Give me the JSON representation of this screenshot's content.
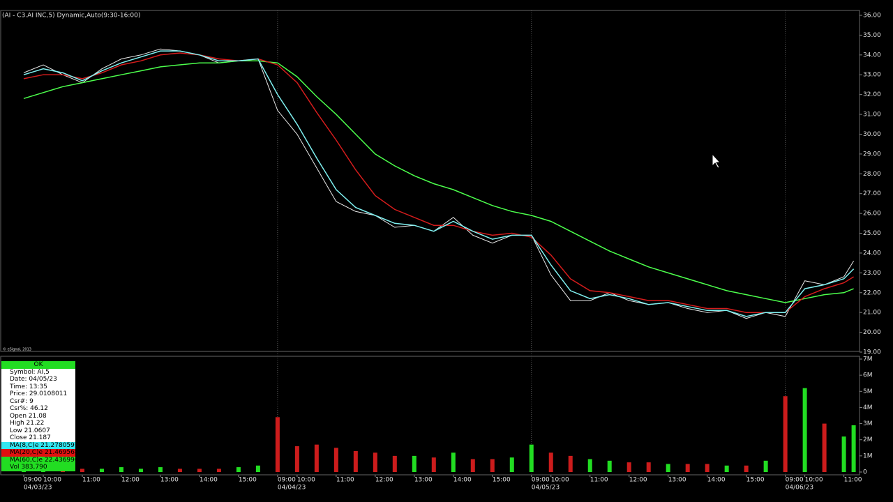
{
  "chart_data": {
    "type": "line",
    "title": "(AI - C3.AI INC,5) Dynamic,Auto(9:30-16:00)",
    "copyright": "© eSignal, 2013",
    "x": [
      0,
      0.5,
      1,
      1.5,
      2,
      2.5,
      3,
      3.5,
      4,
      4.5,
      5,
      5.5,
      6,
      6.5,
      7,
      7.5,
      8,
      8.5,
      9,
      9.5,
      10,
      10.5,
      11,
      11.5,
      12,
      12.5,
      13,
      13.5,
      14,
      14.5,
      15,
      15.5,
      16,
      16.5,
      17,
      17.5,
      18,
      18.5,
      19,
      19.5,
      20,
      20.5,
      21,
      21.25
    ],
    "xlim": [
      0,
      21.4
    ],
    "xticks": [
      {
        "value": 0,
        "label": "09:00"
      },
      {
        "value": 0.5,
        "label": "10:00"
      },
      {
        "value": 1.5,
        "label": "11:00"
      },
      {
        "value": 2.5,
        "label": "12:00"
      },
      {
        "value": 3.5,
        "label": "13:00"
      },
      {
        "value": 4.5,
        "label": "14:00"
      },
      {
        "value": 5.5,
        "label": "15:00"
      },
      {
        "value": 6.5,
        "label": "09:00"
      },
      {
        "value": 7,
        "label": "10:00"
      },
      {
        "value": 8,
        "label": "11:00"
      },
      {
        "value": 9,
        "label": "12:00"
      },
      {
        "value": 10,
        "label": "13:00"
      },
      {
        "value": 11,
        "label": "14:00"
      },
      {
        "value": 12,
        "label": "15:00"
      },
      {
        "value": 13,
        "label": "09:00"
      },
      {
        "value": 13.5,
        "label": "10:00"
      },
      {
        "value": 14.5,
        "label": "11:00"
      },
      {
        "value": 15.5,
        "label": "12:00"
      },
      {
        "value": 16.5,
        "label": "13:00"
      },
      {
        "value": 17.5,
        "label": "14:00"
      },
      {
        "value": 18.5,
        "label": "15:00"
      },
      {
        "value": 19.5,
        "label": "09:00"
      },
      {
        "value": 20,
        "label": "10:00"
      },
      {
        "value": 21,
        "label": "11:00"
      }
    ],
    "dates": [
      {
        "value": 0,
        "label": "04/03/23"
      },
      {
        "value": 6.5,
        "label": "04/04/23"
      },
      {
        "value": 13,
        "label": "04/05/23"
      },
      {
        "value": 19.5,
        "label": "04/06/23"
      }
    ],
    "ylim": [
      19,
      36
    ],
    "yticks": [
      {
        "value": 19,
        "label": "19.00"
      },
      {
        "value": 20,
        "label": "20.00"
      },
      {
        "value": 21,
        "label": "21.00"
      },
      {
        "value": 22,
        "label": "22.00"
      },
      {
        "value": 23,
        "label": "23.00"
      },
      {
        "value": 24,
        "label": "24.00"
      },
      {
        "value": 25,
        "label": "25.00"
      },
      {
        "value": 26,
        "label": "26.00"
      },
      {
        "value": 27,
        "label": "27.00"
      },
      {
        "value": 28,
        "label": "28.00"
      },
      {
        "value": 29,
        "label": "29.00"
      },
      {
        "value": 30,
        "label": "30.00"
      },
      {
        "value": 31,
        "label": "31.00"
      },
      {
        "value": 32,
        "label": "32.00"
      },
      {
        "value": 33,
        "label": "33.00"
      },
      {
        "value": 34,
        "label": "34.00"
      },
      {
        "value": 35,
        "label": "35.00"
      },
      {
        "value": 36,
        "label": "36.00"
      }
    ],
    "series": [
      {
        "color": "#e8e8e8",
        "values": [
          33.1,
          33.5,
          33.0,
          32.6,
          33.3,
          33.8,
          34.0,
          34.3,
          34.2,
          34.0,
          33.6,
          33.7,
          33.8,
          31.2,
          30.0,
          28.3,
          26.6,
          26.1,
          25.9,
          25.3,
          25.4,
          25.1,
          25.8,
          24.9,
          24.5,
          24.9,
          24.9,
          22.9,
          21.6,
          21.6,
          22.0,
          21.6,
          21.4,
          21.5,
          21.2,
          21.0,
          21.1,
          20.7,
          21.0,
          20.8,
          22.6,
          22.4,
          22.8,
          23.6
        ]
      },
      {
        "name": "MA(60,C)e",
        "color": "#4cff4c",
        "values": [
          31.8,
          32.1,
          32.4,
          32.6,
          32.8,
          33.0,
          33.2,
          33.4,
          33.5,
          33.6,
          33.6,
          33.7,
          33.7,
          33.6,
          32.9,
          31.9,
          31.0,
          30.0,
          29.0,
          28.4,
          27.9,
          27.5,
          27.2,
          26.8,
          26.4,
          26.1,
          25.9,
          25.6,
          25.1,
          24.6,
          24.1,
          23.7,
          23.3,
          23.0,
          22.7,
          22.4,
          22.1,
          21.9,
          21.7,
          21.5,
          21.7,
          21.9,
          22.0,
          22.2
        ]
      },
      {
        "name": "MA(20,C)e",
        "color": "#d41c1c",
        "values": [
          32.8,
          33.0,
          33.0,
          32.8,
          33.1,
          33.5,
          33.7,
          34.0,
          34.1,
          34.0,
          33.8,
          33.7,
          33.8,
          33.5,
          32.6,
          31.1,
          29.7,
          28.2,
          26.9,
          26.2,
          25.8,
          25.4,
          25.4,
          25.1,
          24.9,
          25.0,
          24.8,
          23.9,
          22.7,
          22.1,
          22.0,
          21.8,
          21.6,
          21.6,
          21.4,
          21.2,
          21.2,
          21.0,
          21.0,
          21.0,
          21.8,
          22.2,
          22.5,
          22.8
        ]
      },
      {
        "name": "MA(8,C)e",
        "color": "#7ff0f0",
        "values": [
          33.0,
          33.3,
          33.1,
          32.7,
          33.2,
          33.6,
          33.9,
          34.2,
          34.2,
          34.0,
          33.7,
          33.7,
          33.8,
          32.0,
          30.5,
          28.8,
          27.2,
          26.3,
          25.9,
          25.5,
          25.4,
          25.1,
          25.6,
          25.1,
          24.7,
          24.9,
          24.9,
          23.4,
          22.1,
          21.7,
          21.9,
          21.7,
          21.4,
          21.5,
          21.3,
          21.1,
          21.1,
          20.8,
          21.0,
          21.0,
          22.2,
          22.4,
          22.7,
          23.2
        ]
      }
    ],
    "session_breaks": [
      6.5,
      13,
      19.5
    ],
    "volume": {
      "up_color": "#22dd22",
      "down_color": "#cc1c1c",
      "ylim": [
        0,
        7000000
      ],
      "yticks": [
        0,
        {
          "value": 1000000,
          "label": "1M"
        },
        {
          "value": 2000000,
          "label": "2M"
        },
        {
          "value": 3000000,
          "label": "3M"
        },
        {
          "value": 4000000,
          "label": "4M"
        },
        {
          "value": 5000000,
          "label": "5M"
        },
        {
          "value": 6000000,
          "label": "6M"
        },
        {
          "value": 7000000,
          "label": "7M"
        }
      ],
      "values": [
        400000,
        300000,
        300000,
        200000,
        200000,
        300000,
        200000,
        300000,
        200000,
        200000,
        200000,
        300000,
        400000,
        3400000,
        1600000,
        1700000,
        1500000,
        1300000,
        1200000,
        1000000,
        1000000,
        900000,
        1200000,
        800000,
        800000,
        900000,
        1700000,
        1200000,
        1000000,
        800000,
        700000,
        600000,
        600000,
        500000,
        500000,
        500000,
        400000,
        400000,
        700000,
        4700000,
        5200000,
        3000000,
        2200000,
        2900000
      ]
    }
  },
  "info_box": {
    "status": "OK",
    "rows": [
      "Symbol: AI,5",
      "Date: 04/05/23",
      "Time: 13:35",
      "Price: 29.0108011",
      "Csr#: 9",
      "Csr%: 46.12",
      "Open 21.08",
      "High 21.22",
      "Low 21.0607",
      "Close 21.187"
    ],
    "ma_rows": [
      {
        "text": "MA(8,C)e 21.278059",
        "color": "#33e6f0"
      },
      {
        "text": "MA(20,C)e 21.469568",
        "color": "#e01010"
      },
      {
        "text": "MA(60,C)e 22.436996",
        "color": "#22dd22"
      }
    ],
    "vol_row": "Vol 383,790"
  }
}
